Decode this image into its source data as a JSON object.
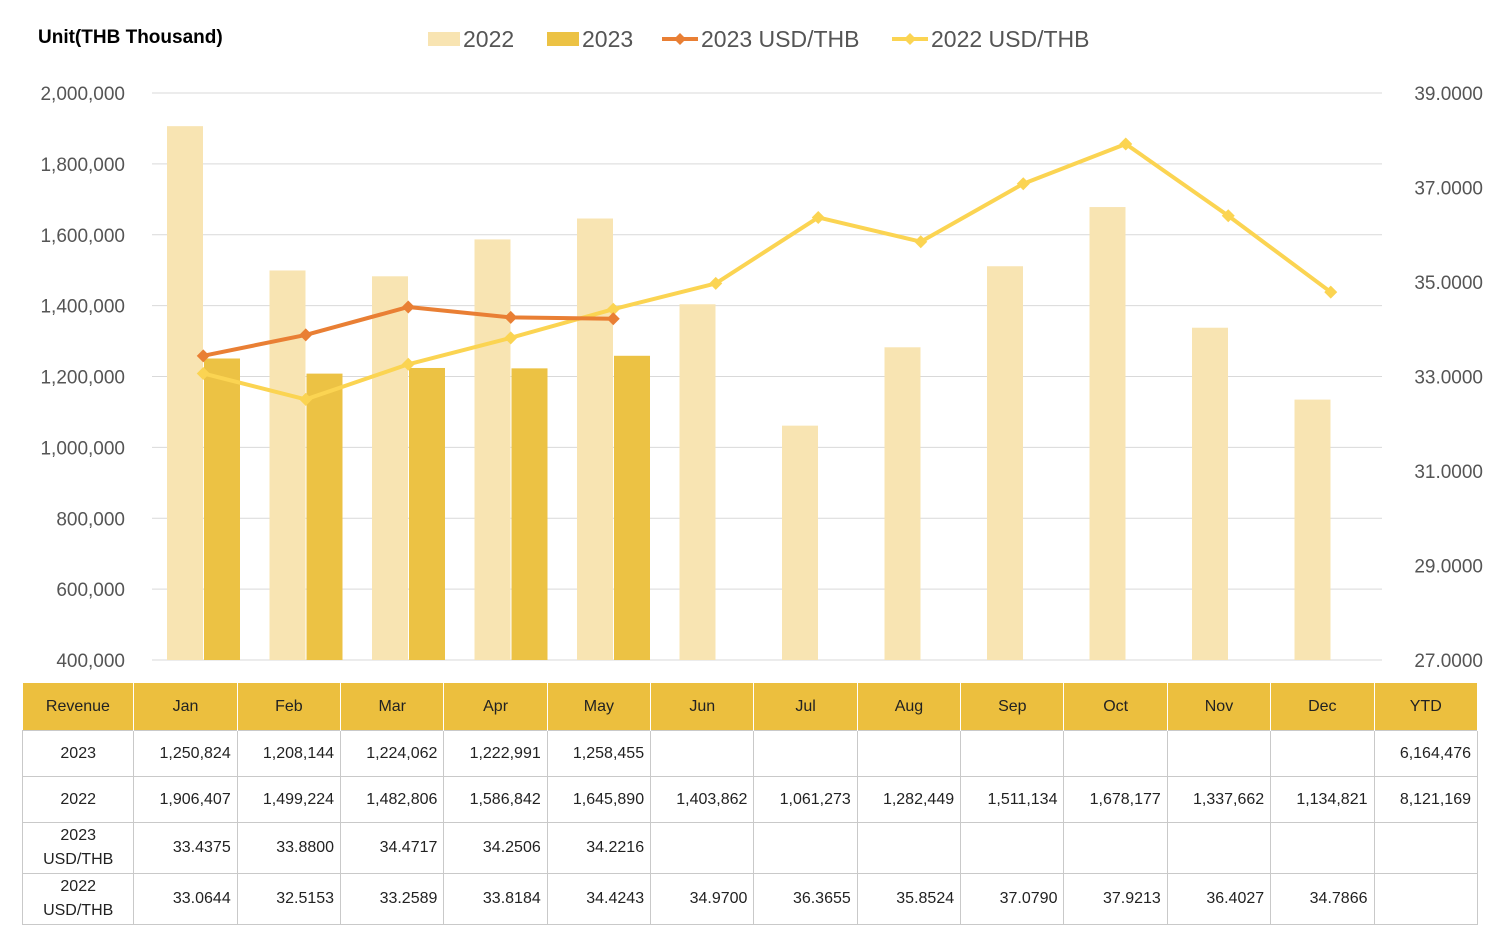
{
  "unit_label": "Unit(THB Thousand)",
  "colors": {
    "bar_2022": "#f8e4b2",
    "bar_2023": "#ecc244",
    "line_2023": "#e97f34",
    "line_2022": "#fbd452",
    "header_bg": "#ecbf3e"
  },
  "chart_data": {
    "type": "bar",
    "categories": [
      "Jan",
      "Feb",
      "Mar",
      "Apr",
      "May",
      "Jun",
      "Jul",
      "Aug",
      "Sep",
      "Oct",
      "Nov",
      "Dec"
    ],
    "series": [
      {
        "name": "2022",
        "type": "bar",
        "axis": "left",
        "values": [
          1906407,
          1499224,
          1482806,
          1586842,
          1645890,
          1403862,
          1061273,
          1282449,
          1511134,
          1678177,
          1337662,
          1134821
        ]
      },
      {
        "name": "2023",
        "type": "bar",
        "axis": "left",
        "values": [
          1250824,
          1208144,
          1224062,
          1222991,
          1258455,
          null,
          null,
          null,
          null,
          null,
          null,
          null
        ]
      },
      {
        "name": "2023 USD/THB",
        "type": "line",
        "axis": "right",
        "values": [
          33.4375,
          33.88,
          34.4717,
          34.2506,
          34.2216,
          null,
          null,
          null,
          null,
          null,
          null,
          null
        ]
      },
      {
        "name": "2022 USD/THB",
        "type": "line",
        "axis": "right",
        "values": [
          33.0644,
          32.5153,
          33.2589,
          33.8184,
          34.4243,
          34.97,
          36.3655,
          35.8524,
          37.079,
          37.9213,
          36.4027,
          34.7866
        ]
      }
    ],
    "ylim_left": [
      400000,
      2000000
    ],
    "yticks_left": [
      "400,000",
      "600,000",
      "800,000",
      "1,000,000",
      "1,200,000",
      "1,400,000",
      "1,600,000",
      "1,800,000",
      "2,000,000"
    ],
    "ylim_right": [
      27,
      39
    ],
    "yticks_right": [
      "27.0000",
      "29.0000",
      "31.0000",
      "33.0000",
      "35.0000",
      "37.0000",
      "39.0000"
    ],
    "grid": true,
    "legend_position": "top"
  },
  "table": {
    "headers": [
      "Revenue",
      "Jan",
      "Feb",
      "Mar",
      "Apr",
      "May",
      "Jun",
      "Jul",
      "Aug",
      "Sep",
      "Oct",
      "Nov",
      "Dec",
      "YTD"
    ],
    "rows": [
      {
        "label": "2023",
        "cells": [
          "1,250,824",
          "1,208,144",
          "1,224,062",
          "1,222,991",
          "1,258,455",
          "",
          "",
          "",
          "",
          "",
          "",
          "",
          "6,164,476"
        ]
      },
      {
        "label": "2022",
        "cells": [
          "1,906,407",
          "1,499,224",
          "1,482,806",
          "1,586,842",
          "1,645,890",
          "1,403,862",
          "1,061,273",
          "1,282,449",
          "1,511,134",
          "1,678,177",
          "1,337,662",
          "1,134,821",
          "8,121,169"
        ]
      },
      {
        "label": "2023\nUSD/THB",
        "cells": [
          "33.4375",
          "33.8800",
          "34.4717",
          "34.2506",
          "34.2216",
          "",
          "",
          "",
          "",
          "",
          "",
          "",
          ""
        ]
      },
      {
        "label": "2022\nUSD/THB",
        "cells": [
          "33.0644",
          "32.5153",
          "33.2589",
          "33.8184",
          "34.4243",
          "34.9700",
          "36.3655",
          "35.8524",
          "37.0790",
          "37.9213",
          "36.4027",
          "34.7866",
          ""
        ]
      }
    ]
  }
}
